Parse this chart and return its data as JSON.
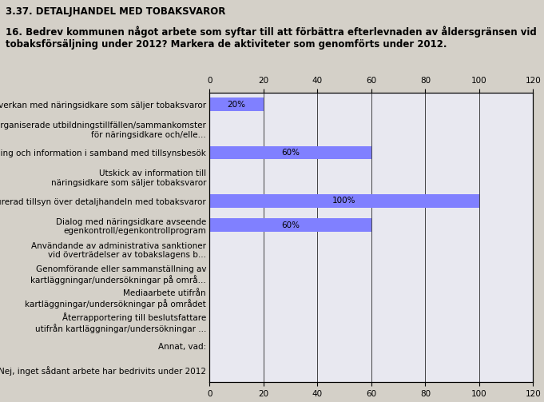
{
  "title": "3.37. DETALJHANDEL MED TOBAKSVAROR",
  "subtitle": "16. Bedrev kommunen något arbete som syftar till att förbättra efterlevnaden av åldersgränsen vid\ntobaksförsäljning under 2012? Markera de aktiviteter som genomförts under 2012.",
  "categories": [
    "Samverkan med näringsidkare som säljer tobaksvaror",
    "Organiserade utbildningstillfällen/sammankomster\nför näringsidkare och/elle...",
    "Utbildning och information i samband med tillsynsbesök",
    "Utskick av information till\nnäringsidkare som säljer tobaksvaror",
    "Strukturerad tillsyn över detaljhandeln med tobaksvaror",
    "Dialog med näringsidkare avseende\negenkontroll/egenkontrollprogram",
    "Användande av administrativa sanktioner\nvid överträdelser av tobakslagens b...",
    "Genomförande eller sammanställning av\nkartläggningar/undersökningar på områ...",
    "Mediaarbete utifrån\nkartläggningar/undersökningar på området",
    "Återrapportering till beslutsfattare\nutifrån kartläggningar/undersökningar ...",
    "Annat, vad:",
    "Nej, inget sådant arbete har bedrivits under 2012"
  ],
  "values": [
    20,
    0,
    60,
    0,
    100,
    60,
    0,
    0,
    0,
    0,
    0,
    0
  ],
  "bar_color": "#8080ff",
  "bar_label_color": "#000000",
  "outer_background": "#d4d0c8",
  "plot_background": "#e8e8f0",
  "xlim": [
    0,
    120
  ],
  "xticks": [
    0,
    20,
    40,
    60,
    80,
    100,
    120
  ],
  "title_fontsize": 8.5,
  "subtitle_fontsize": 8.5,
  "label_fontsize": 7.5,
  "tick_fontsize": 7.5
}
